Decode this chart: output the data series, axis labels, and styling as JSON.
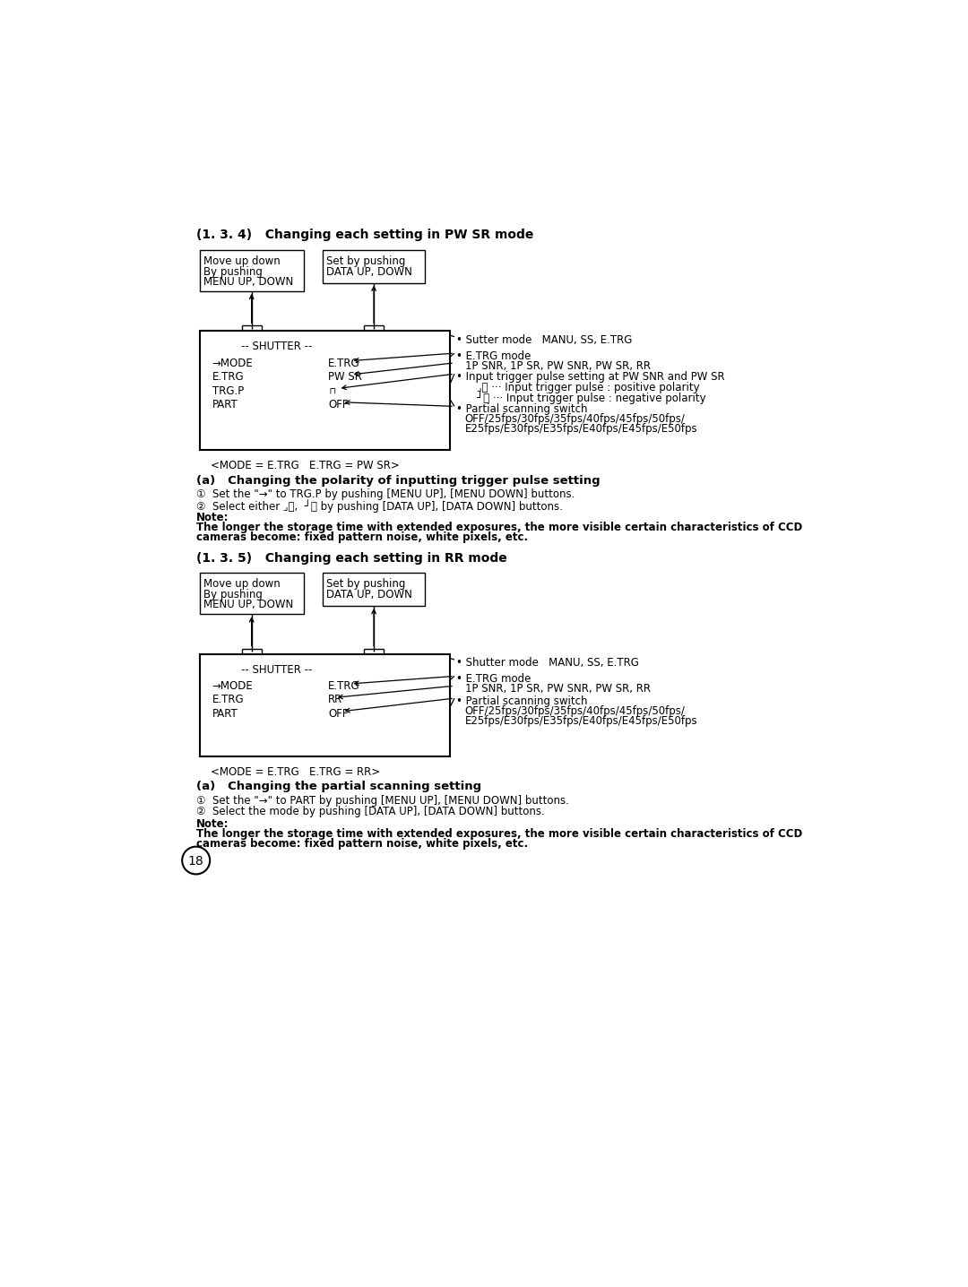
{
  "bg_color": "#ffffff",
  "page_number": "18",
  "section1_title": "(1. 3. 4)   Changing each setting in PW SR mode",
  "section2_title": "(1. 3. 5)   Changing each setting in RR mode",
  "caption1": "<MODE = E.TRG   E.TRG = PW SR>",
  "caption2": "<MODE = E.TRG   E.TRG = RR>",
  "sub_a1_title": "(a)   Changing the polarity of inputting trigger pulse setting",
  "sub_a1_step1": "①  Set the \"→\" to TRG.P by pushing [MENU UP], [MENU DOWN] buttons.",
  "sub_a1_step2": "②  Select either ⌟⎺,  ┘⎺ by pushing [DATA UP], [DATA DOWN] buttons.",
  "sub_a2_title": "(a)   Changing the partial scanning setting",
  "sub_a2_step1": "①  Set the \"→\" to PART by pushing [MENU UP], [MENU DOWN] buttons.",
  "sub_a2_step2": "②  Select the mode by pushing [DATA UP], [DATA DOWN] buttons.",
  "note1_line1": "The longer the storage time with extended exposures, the more visible certain characteristics of CCD",
  "note1_line2": "cameras become: fixed pattern noise, white pixels, etc.",
  "note2_line1": "The longer the storage time with extended exposures, the more visible certain characteristics of CCD",
  "note2_line2": "cameras become: fixed pattern noise, white pixels, etc.",
  "bullet_sutter": "• Sutter mode   MANU, SS, E.TRG",
  "bullet_etrg_mode": "• E.TRG mode",
  "etrg_mode_vals": "1P SNR, 1P SR, PW SNR, PW SR, RR",
  "bullet_input_trigger": "• Input trigger pulse setting at PW SNR and PW SR",
  "pos_polarity_line": "    ⌟⎺ ··· Input trigger pulse : positive polarity",
  "neg_polarity_line": "    ┘⎺ ··· Input trigger pulse : negative polarity",
  "bullet_partial": "• Partial scanning switch",
  "partial_vals1": "OFF/25fps/30fps/35fps/40fps/45fps/50fps/",
  "partial_vals2": "E25fps/E30fps/E35fps/E40fps/E45fps/E50fps",
  "bullet_shutter2": "• Shutter mode   MANU, SS, E.TRG",
  "bullet_etrg_mode2": "• E.TRG mode",
  "etrg_mode_vals2": "1P SNR, 1P SR, PW SNR, PW SR, RR",
  "bullet_partial2": "• Partial scanning switch",
  "partial_vals1_2": "OFF/25fps/30fps/35fps/40fps/45fps/50fps/",
  "partial_vals2_2": "E25fps/E30fps/E35fps/E40fps/E45fps/E50fps"
}
